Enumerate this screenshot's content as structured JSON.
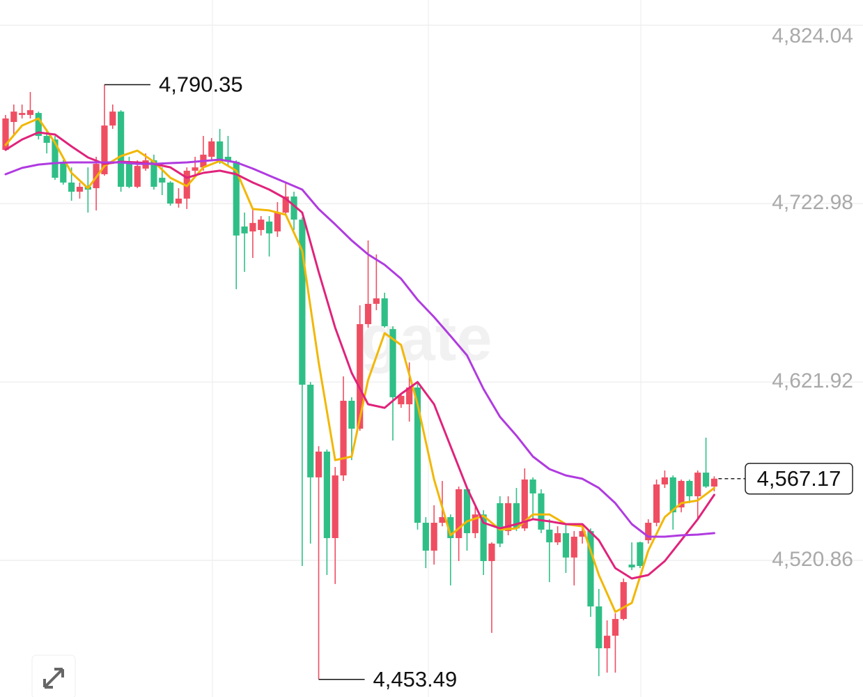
{
  "chart_data": {
    "type": "candlestick",
    "watermark": "gate",
    "up_color": "#ef4e62",
    "down_color": "#2fbf86",
    "grid": true,
    "ylim": [
      4443.5,
      4838.3
    ],
    "yticks": [
      {
        "value": 4824.04,
        "label": "4,824.04"
      },
      {
        "value": 4722.98,
        "label": "4,722.98"
      },
      {
        "value": 4621.92,
        "label": "4,621.92"
      },
      {
        "value": 4520.86,
        "label": "4,520.86"
      }
    ],
    "open": [
      4753.4,
      4769.2,
      4773.2,
      4773.2,
      4774.3,
      4761.3,
      4759.3,
      4746.7,
      4734.9,
      4729.7,
      4732.5,
      4731.7,
      4739.6,
      4767.2,
      4775.1,
      4746.7,
      4732.5,
      4742.8,
      4747.5,
      4737.6,
      4734.9,
      4723.0,
      4725.8,
      4741.6,
      4743.5,
      4749.5,
      4758.2,
      4749.5,
      4746.7,
      4710.0,
      4707.2,
      4708.0,
      4712.8,
      4707.2,
      4717.9,
      4727.0,
      4713.9,
      4620.4,
      4567.9,
      4582.5,
      4533.5,
      4569.0,
      4611.3,
      4595.5,
      4654.7,
      4666.2,
      4669.3,
      4651.9,
      4609.3,
      4609.3,
      4618.8,
      4542.2,
      4526.4,
      4542.2,
      4545.4,
      4533.5,
      4561.2,
      4536.3,
      4546.9,
      4520.5,
      4553.3,
      4537.5,
      4553.3,
      4539.0,
      4566.7,
      4558.8,
      4538.3,
      4531.1,
      4536.3,
      4522.5,
      4534.3,
      4537.5,
      4494.8,
      4471.1,
      4478.2,
      4487.7,
      4518.5,
      4531.1,
      4532.3,
      4542.2,
      4563.9,
      4567.9,
      4550.9,
      4565.9,
      4557.2,
      4570.6,
      4562.7
    ],
    "high": [
      4773.2,
      4779.1,
      4779.1,
      4786.2,
      4775.1,
      4765.3,
      4761.3,
      4747.5,
      4743.5,
      4734.9,
      4743.5,
      4749.5,
      4790.35,
      4779.1,
      4775.9,
      4749.5,
      4747.5,
      4751.4,
      4750.7,
      4743.5,
      4735.7,
      4731.7,
      4743.5,
      4749.5,
      4761.3,
      4760.1,
      4765.3,
      4761.3,
      4747.5,
      4717.9,
      4719.9,
      4715.9,
      4715.9,
      4723.8,
      4734.9,
      4729.7,
      4715.1,
      4621.9,
      4585.6,
      4583.7,
      4573.8,
      4625.1,
      4613.3,
      4665.4,
      4702.1,
      4694.2,
      4672.5,
      4653.5,
      4615.2,
      4633.0,
      4621.2,
      4545.4,
      4552.1,
      4565.9,
      4546.9,
      4562.7,
      4562.7,
      4552.1,
      4549.3,
      4531.1,
      4557.2,
      4557.2,
      4561.9,
      4573.0,
      4567.9,
      4561.2,
      4544.2,
      4540.2,
      4541.4,
      4537.5,
      4540.2,
      4539.0,
      4504.7,
      4486.9,
      4490.9,
      4510.6,
      4531.1,
      4531.5,
      4544.2,
      4566.7,
      4571.8,
      4569.0,
      4566.7,
      4566.7,
      4571.8,
      4590.4,
      4568.5
    ],
    "low": [
      4753.4,
      4761.3,
      4771.2,
      4771.2,
      4759.3,
      4751.4,
      4736.4,
      4733.7,
      4724.6,
      4725.8,
      4717.9,
      4719.1,
      4738.8,
      4765.3,
      4729.7,
      4731.7,
      4731.7,
      4741.6,
      4730.9,
      4727.8,
      4721.8,
      4720.7,
      4719.9,
      4737.6,
      4741.6,
      4747.5,
      4745.5,
      4744.3,
      4674.5,
      4684.3,
      4692.2,
      4704.9,
      4693.0,
      4704.1,
      4715.9,
      4708.0,
      4517.7,
      4530.4,
      4453.49,
      4512.6,
      4507.5,
      4565.9,
      4577.7,
      4594.3,
      4652.7,
      4662.6,
      4652.7,
      4588.8,
      4607.3,
      4599.5,
      4538.3,
      4516.5,
      4518.5,
      4540.2,
      4506.7,
      4520.5,
      4526.4,
      4533.5,
      4512.6,
      4479.8,
      4528.4,
      4535.1,
      4537.5,
      4537.5,
      4544.2,
      4536.3,
      4508.6,
      4529.6,
      4513.8,
      4506.7,
      4530.4,
      4488.9,
      4455.3,
      4457.3,
      4457.3,
      4486.9,
      4515.4,
      4516.5,
      4530.4,
      4540.2,
      4561.9,
      4538.3,
      4548.1,
      4553.3,
      4544.2,
      4561.9,
      4560.0
    ],
    "close": [
      4771.2,
      4775.1,
      4774.3,
      4775.9,
      4761.3,
      4757.4,
      4737.6,
      4734.9,
      4729.7,
      4732.5,
      4730.9,
      4745.5,
      4767.2,
      4775.1,
      4732.5,
      4732.5,
      4744.3,
      4747.5,
      4732.5,
      4734.9,
      4723.0,
      4725.8,
      4741.6,
      4743.5,
      4750.7,
      4758.2,
      4746.7,
      4746.7,
      4704.9,
      4706.1,
      4712.0,
      4713.9,
      4706.1,
      4717.9,
      4727.0,
      4713.9,
      4620.4,
      4567.9,
      4582.5,
      4533.5,
      4569.0,
      4611.3,
      4595.5,
      4654.7,
      4666.2,
      4669.3,
      4653.5,
      4613.3,
      4614.1,
      4618.8,
      4542.2,
      4526.4,
      4542.2,
      4545.4,
      4533.5,
      4561.2,
      4536.3,
      4546.9,
      4520.5,
      4530.4,
      4530.4,
      4553.3,
      4539.0,
      4566.7,
      4558.8,
      4538.3,
      4531.1,
      4536.3,
      4522.5,
      4534.3,
      4537.5,
      4494.8,
      4471.1,
      4478.2,
      4487.7,
      4508.6,
      4516.9,
      4517.7,
      4542.2,
      4563.9,
      4567.9,
      4548.1,
      4565.9,
      4557.2,
      4570.6,
      4562.7,
      4567.17
    ],
    "series": [
      {
        "color": "#f2b705",
        "x": [
          0,
          2,
          4,
          6,
          8,
          10,
          12,
          14,
          16,
          18,
          20,
          22,
          24,
          26,
          28,
          30,
          32,
          34,
          36,
          38,
          40,
          42,
          44,
          46,
          48,
          50,
          52,
          54,
          56,
          58,
          60,
          62,
          64,
          66,
          68,
          70,
          72,
          74,
          76,
          78,
          80,
          82,
          84,
          86
        ],
        "values": [
          4756.2,
          4767.2,
          4771.2,
          4757.4,
          4740.4,
          4731.7,
          4744.3,
          4749.9,
          4753.0,
          4746.7,
          4737.6,
          4732.9,
          4743.5,
          4747.1,
          4741.6,
          4719.9,
          4719.1,
          4716.7,
          4696.2,
          4633.0,
          4577.7,
          4579.7,
          4623.1,
          4649.6,
          4642.9,
          4609.3,
          4566.7,
          4535.1,
          4543.0,
          4546.1,
          4538.3,
          4539.0,
          4546.9,
          4546.9,
          4541.4,
          4540.2,
          4512.6,
          4491.7,
          4496.8,
          4526.4,
          4545.4,
          4553.3,
          4554.8,
          4561.9
        ]
      },
      {
        "color": "#e0237a",
        "x": [
          0,
          2,
          4,
          6,
          8,
          10,
          12,
          14,
          16,
          18,
          20,
          22,
          24,
          26,
          28,
          30,
          32,
          34,
          36,
          38,
          40,
          42,
          44,
          46,
          48,
          50,
          52,
          54,
          56,
          58,
          60,
          62,
          64,
          66,
          68,
          70,
          72,
          74,
          76,
          78,
          80,
          82,
          84,
          86
        ],
        "values": [
          4753.4,
          4759.3,
          4763.3,
          4762.1,
          4755.4,
          4749.1,
          4745.5,
          4746.7,
          4746.3,
          4745.5,
          4743.5,
          4737.6,
          4740.4,
          4741.6,
          4739.6,
          4734.9,
          4730.9,
          4725.8,
          4717.9,
          4684.3,
          4652.7,
          4627.1,
          4609.3,
          4607.3,
          4615.2,
          4621.9,
          4609.3,
          4585.6,
          4561.9,
          4542.2,
          4539.0,
          4541.4,
          4544.2,
          4543.0,
          4541.4,
          4541.4,
          4532.3,
          4516.5,
          4510.6,
          4512.6,
          4520.5,
          4532.3,
          4544.2,
          4558.0
        ]
      },
      {
        "color": "#b03be0",
        "x": [
          0,
          2,
          4,
          6,
          8,
          10,
          12,
          14,
          16,
          18,
          20,
          22,
          24,
          26,
          28,
          30,
          32,
          34,
          36,
          38,
          40,
          42,
          44,
          46,
          48,
          50,
          52,
          54,
          56,
          58,
          60,
          62,
          64,
          66,
          68,
          70,
          72,
          74,
          76,
          78,
          80,
          82,
          84,
          86
        ],
        "values": [
          4739.6,
          4743.2,
          4745.1,
          4745.9,
          4746.3,
          4746.3,
          4746.3,
          4746.3,
          4745.5,
          4745.5,
          4745.9,
          4746.3,
          4747.1,
          4747.9,
          4746.3,
          4742.8,
          4738.8,
          4734.9,
          4730.9,
          4719.9,
          4711.2,
          4702.1,
          4694.2,
          4688.3,
          4680.4,
          4668.5,
          4658.7,
          4648.0,
          4637.0,
          4618.0,
          4602.2,
          4591.5,
          4579.7,
          4572.6,
          4569.0,
          4567.1,
          4561.9,
          4553.3,
          4541.4,
          4534.3,
          4534.3,
          4535.1,
          4535.5,
          4536.3
        ]
      }
    ],
    "annotations": [
      {
        "index": 12,
        "value": 4790.35,
        "label": "4,790.35"
      },
      {
        "index": 38,
        "value": 4453.49,
        "label": "4,453.49"
      }
    ],
    "last_price": {
      "value": 4567.17,
      "label": "4,567.17"
    }
  }
}
